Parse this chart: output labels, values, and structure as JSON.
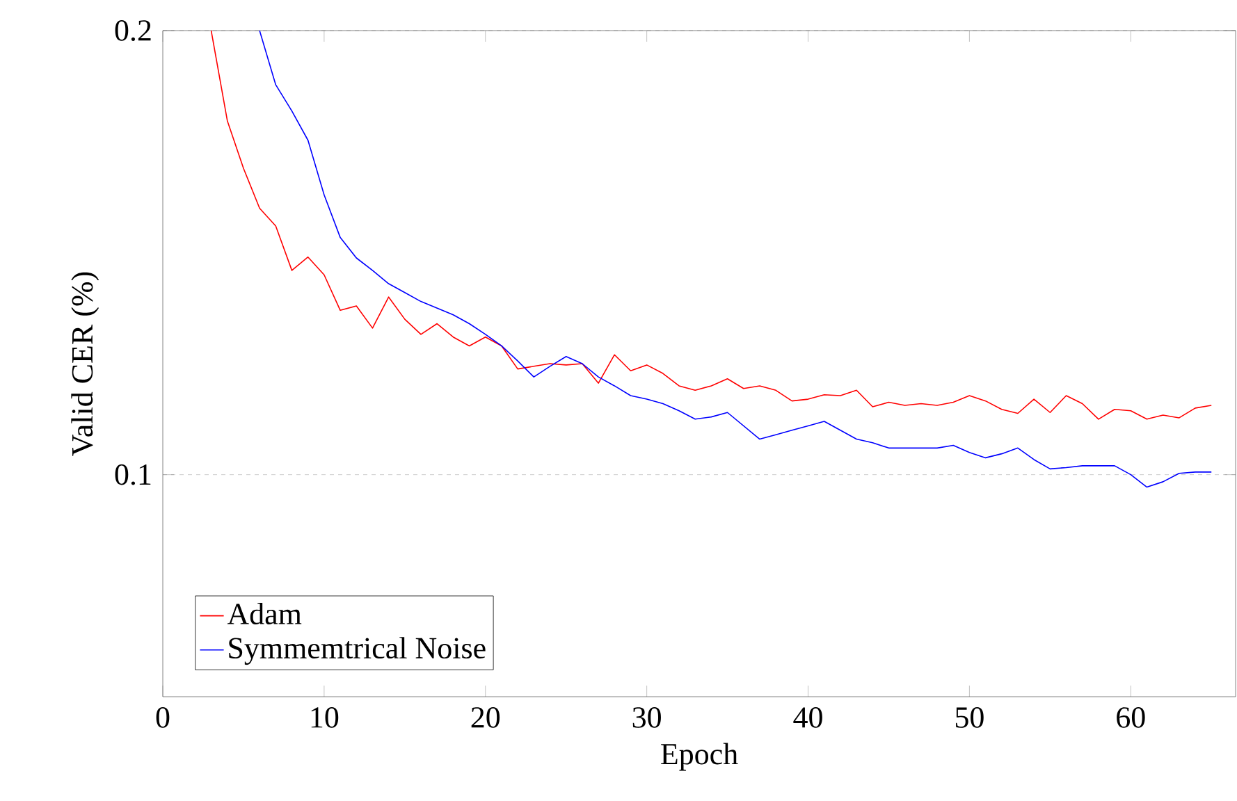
{
  "chart_data": {
    "type": "line",
    "xlabel": "Epoch",
    "ylabel": "Valid CER (%)",
    "xlim": [
      0,
      66.5
    ],
    "ylim": [
      0.05,
      0.2
    ],
    "xticks": [
      0,
      10,
      20,
      30,
      40,
      50,
      60
    ],
    "yticks": [
      0.1,
      0.2
    ],
    "grid": "y",
    "legend": "bottom left",
    "series": [
      {
        "name": "Adam",
        "color": "#ff0000",
        "x": [
          3,
          4,
          5,
          6,
          7,
          8,
          9,
          10,
          11,
          12,
          13,
          14,
          15,
          16,
          17,
          18,
          19,
          20,
          21,
          22,
          23,
          24,
          25,
          26,
          27,
          28,
          29,
          30,
          31,
          32,
          33,
          34,
          35,
          36,
          37,
          38,
          39,
          40,
          41,
          42,
          43,
          44,
          45,
          46,
          47,
          48,
          49,
          50,
          51,
          52,
          53,
          54,
          55,
          56,
          57,
          58,
          59,
          60,
          61,
          62,
          63,
          64,
          65
        ],
        "values": [
          0.2,
          0.1797,
          0.169,
          0.16,
          0.156,
          0.146,
          0.149,
          0.145,
          0.137,
          0.138,
          0.133,
          0.14,
          0.135,
          0.1316,
          0.134,
          0.131,
          0.129,
          0.131,
          0.129,
          0.1238,
          0.1244,
          0.125,
          0.1247,
          0.125,
          0.1206,
          0.127,
          0.1234,
          0.1247,
          0.1228,
          0.12,
          0.119,
          0.12,
          0.1216,
          0.1194,
          0.12,
          0.119,
          0.1166,
          0.117,
          0.118,
          0.1178,
          0.119,
          0.1153,
          0.1163,
          0.1156,
          0.116,
          0.1156,
          0.1163,
          0.1178,
          0.1166,
          0.1147,
          0.1138,
          0.117,
          0.114,
          0.1178,
          0.116,
          0.1125,
          0.1147,
          0.1144,
          0.1125,
          0.1134,
          0.1128,
          0.115,
          0.1156
        ]
      },
      {
        "name": "Symmemtrical Noise",
        "color": "#0000ff",
        "x": [
          6,
          7,
          8,
          9,
          10,
          11,
          12,
          13,
          14,
          15,
          16,
          17,
          18,
          19,
          20,
          21,
          22,
          23,
          24,
          25,
          26,
          27,
          28,
          29,
          30,
          31,
          32,
          33,
          34,
          35,
          36,
          37,
          38,
          39,
          40,
          41,
          42,
          43,
          44,
          45,
          46,
          47,
          48,
          49,
          50,
          51,
          52,
          53,
          54,
          55,
          56,
          57,
          58,
          59,
          60,
          61,
          62,
          63,
          64,
          65
        ],
        "values": [
          0.2,
          0.1878,
          0.1819,
          0.1753,
          0.163,
          0.1534,
          0.1488,
          0.146,
          0.143,
          0.141,
          0.139,
          0.1375,
          0.136,
          0.134,
          0.1316,
          0.129,
          0.1256,
          0.122,
          0.1244,
          0.1266,
          0.125,
          0.122,
          0.12,
          0.1178,
          0.117,
          0.116,
          0.1144,
          0.1125,
          0.113,
          0.114,
          0.111,
          0.108,
          0.109,
          0.11,
          0.111,
          0.112,
          0.11,
          0.108,
          0.1072,
          0.106,
          0.106,
          0.106,
          0.106,
          0.1066,
          0.105,
          0.1038,
          0.1047,
          0.106,
          0.1034,
          0.1013,
          0.1016,
          0.102,
          0.102,
          0.102,
          0.1,
          0.0972,
          0.0984,
          0.1003,
          0.1006,
          0.1006
        ]
      }
    ]
  }
}
